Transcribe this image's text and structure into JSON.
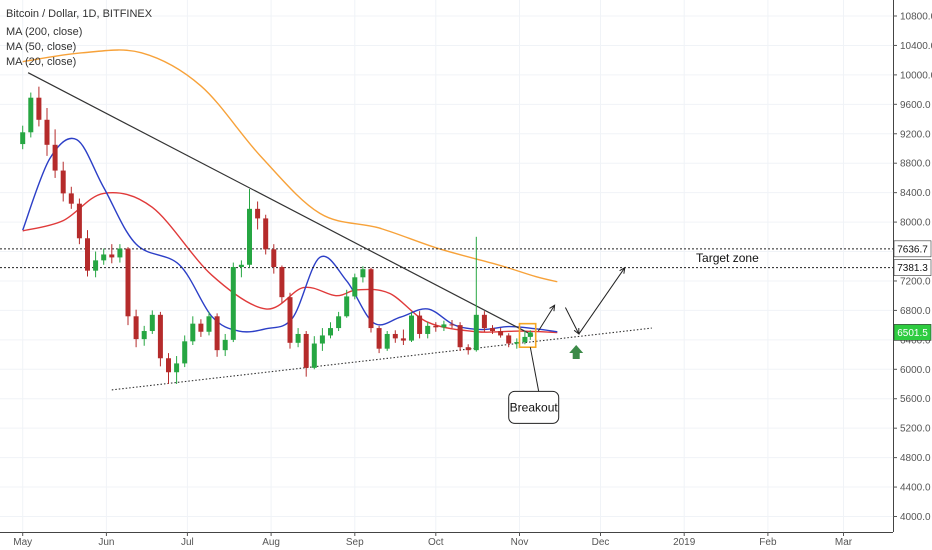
{
  "chart_data": {
    "type": "candlestick",
    "title": "Bitcoin / Dollar, 1D, BITFINEX",
    "indicators": [
      {
        "name": "MA (200, close)",
        "color": "#f7a23a"
      },
      {
        "name": "MA (50, close)",
        "color": "#e03a3a"
      },
      {
        "name": "MA (20, close)",
        "color": "#2c3fc7"
      }
    ],
    "y_ticks": [
      10800,
      10400,
      10000,
      9600,
      9200,
      8800,
      8400,
      8000,
      7600,
      7200,
      6800,
      6400,
      6000,
      5600,
      5200,
      4800,
      4400,
      4000
    ],
    "y_tick_labels": [
      "10800.0",
      "10400.0",
      "10000.0",
      "9600.0",
      "9200.0",
      "8800.0",
      "8400.0",
      "8000.0",
      "7600.0",
      "7200.0",
      "6800.0",
      "6400.0",
      "6000.0",
      "5600.0",
      "5200.0",
      "4800.0",
      "4400.0",
      "4000.0"
    ],
    "ylim": [
      3880,
      11040
    ],
    "x_ticks": [
      {
        "date": "2018-05-01",
        "label": "May"
      },
      {
        "date": "2018-06-01",
        "label": "Jun"
      },
      {
        "date": "2018-07-01",
        "label": "Jul"
      },
      {
        "date": "2018-08-01",
        "label": "Aug"
      },
      {
        "date": "2018-09-01",
        "label": "Sep"
      },
      {
        "date": "2018-10-01",
        "label": "Oct"
      },
      {
        "date": "2018-11-01",
        "label": "Nov"
      },
      {
        "date": "2018-12-01",
        "label": "Dec"
      },
      {
        "date": "2019-01-01",
        "label": "2019"
      },
      {
        "date": "2019-02-01",
        "label": "Feb"
      },
      {
        "date": "2019-03-01",
        "label": "Mar"
      }
    ],
    "xlim": [
      "2018-04-30",
      "2019-03-19"
    ],
    "candles": [
      [
        "2018-05-01",
        9060,
        9310,
        8990,
        9220
      ],
      [
        "2018-05-04",
        9220,
        9760,
        9150,
        9690
      ],
      [
        "2018-05-07",
        9690,
        9840,
        9300,
        9390
      ],
      [
        "2018-05-10",
        9390,
        9550,
        8900,
        9050
      ],
      [
        "2018-05-13",
        9050,
        9260,
        8600,
        8700
      ],
      [
        "2018-05-16",
        8700,
        8820,
        8280,
        8390
      ],
      [
        "2018-05-19",
        8390,
        8480,
        8180,
        8250
      ],
      [
        "2018-05-22",
        8250,
        8320,
        7700,
        7780
      ],
      [
        "2018-05-25",
        7780,
        7890,
        7260,
        7340
      ],
      [
        "2018-05-28",
        7340,
        7600,
        7250,
        7480
      ],
      [
        "2018-05-31",
        7480,
        7640,
        7420,
        7560
      ],
      [
        "2018-06-03",
        7560,
        7700,
        7440,
        7520
      ],
      [
        "2018-06-06",
        7520,
        7700,
        7450,
        7640
      ],
      [
        "2018-06-09",
        7640,
        7660,
        6600,
        6720
      ],
      [
        "2018-06-12",
        6720,
        6810,
        6300,
        6410
      ],
      [
        "2018-06-15",
        6410,
        6590,
        6320,
        6520
      ],
      [
        "2018-06-18",
        6520,
        6800,
        6480,
        6740
      ],
      [
        "2018-06-21",
        6740,
        6780,
        6040,
        6150
      ],
      [
        "2018-06-24",
        6150,
        6220,
        5800,
        5960
      ],
      [
        "2018-06-27",
        5960,
        6180,
        5800,
        6080
      ],
      [
        "2018-06-30",
        6080,
        6460,
        6030,
        6380
      ],
      [
        "2018-07-03",
        6380,
        6720,
        6330,
        6620
      ],
      [
        "2018-07-06",
        6620,
        6680,
        6440,
        6510
      ],
      [
        "2018-07-09",
        6510,
        6780,
        6460,
        6720
      ],
      [
        "2018-07-12",
        6720,
        6760,
        6170,
        6260
      ],
      [
        "2018-07-15",
        6260,
        6480,
        6180,
        6400
      ],
      [
        "2018-07-18",
        6400,
        7450,
        6370,
        7390
      ],
      [
        "2018-07-21",
        7390,
        7480,
        7250,
        7420
      ],
      [
        "2018-07-24",
        7420,
        8450,
        7380,
        8180
      ],
      [
        "2018-07-27",
        8180,
        8280,
        7900,
        8050
      ],
      [
        "2018-07-30",
        8050,
        8100,
        7560,
        7630
      ],
      [
        "2018-08-02",
        7630,
        7700,
        7300,
        7390
      ],
      [
        "2018-08-05",
        7390,
        7410,
        6900,
        6980
      ],
      [
        "2018-08-08",
        6980,
        7040,
        6280,
        6360
      ],
      [
        "2018-08-11",
        6360,
        6560,
        6300,
        6480
      ],
      [
        "2018-08-14",
        6480,
        6520,
        5900,
        6020
      ],
      [
        "2018-08-17",
        6020,
        6450,
        6000,
        6350
      ],
      [
        "2018-08-20",
        6350,
        6560,
        6250,
        6460
      ],
      [
        "2018-08-23",
        6460,
        6640,
        6420,
        6560
      ],
      [
        "2018-08-26",
        6560,
        6780,
        6520,
        6720
      ],
      [
        "2018-08-29",
        6720,
        7080,
        6700,
        6990
      ],
      [
        "2018-09-01",
        6990,
        7300,
        6950,
        7250
      ],
      [
        "2018-09-04",
        7250,
        7400,
        7180,
        7360
      ],
      [
        "2018-09-07",
        7360,
        7380,
        6500,
        6560
      ],
      [
        "2018-09-10",
        6560,
        6590,
        6220,
        6280
      ],
      [
        "2018-09-13",
        6280,
        6520,
        6250,
        6480
      ],
      [
        "2018-09-16",
        6480,
        6530,
        6360,
        6420
      ],
      [
        "2018-09-19",
        6420,
        6540,
        6330,
        6390
      ],
      [
        "2018-09-22",
        6390,
        6780,
        6370,
        6730
      ],
      [
        "2018-09-25",
        6730,
        6790,
        6420,
        6480
      ],
      [
        "2018-09-28",
        6480,
        6640,
        6420,
        6590
      ],
      [
        "2018-10-01",
        6590,
        6640,
        6510,
        6570
      ],
      [
        "2018-10-04",
        6570,
        6660,
        6520,
        6610
      ],
      [
        "2018-10-07",
        6610,
        6670,
        6560,
        6600
      ],
      [
        "2018-10-10",
        6600,
        6640,
        6250,
        6300
      ],
      [
        "2018-10-13",
        6300,
        6340,
        6200,
        6260
      ],
      [
        "2018-10-16",
        6260,
        7800,
        6240,
        6740
      ],
      [
        "2018-10-19",
        6740,
        6790,
        6510,
        6560
      ],
      [
        "2018-10-22",
        6560,
        6600,
        6480,
        6520
      ],
      [
        "2018-10-25",
        6520,
        6560,
        6430,
        6460
      ],
      [
        "2018-10-28",
        6460,
        6490,
        6300,
        6350
      ],
      [
        "2018-10-31",
        6350,
        6420,
        6280,
        6370
      ],
      [
        "2018-11-03",
        6370,
        6520,
        6340,
        6440
      ],
      [
        "2018-11-05",
        6440,
        6530,
        6400,
        6501.5
      ]
    ],
    "ma200": [
      [
        0,
        10180
      ],
      [
        22,
        10300
      ],
      [
        44,
        10300
      ],
      [
        66,
        9850
      ],
      [
        88,
        8900
      ],
      [
        110,
        8120
      ],
      [
        132,
        7920
      ],
      [
        154,
        7640
      ],
      [
        176,
        7420
      ],
      [
        190,
        7260
      ],
      [
        198,
        7190
      ]
    ],
    "ma50": [
      [
        0,
        7880
      ],
      [
        15,
        8020
      ],
      [
        30,
        8390
      ],
      [
        48,
        8200
      ],
      [
        70,
        7280
      ],
      [
        90,
        6820
      ],
      [
        104,
        7110
      ],
      [
        116,
        7000
      ],
      [
        124,
        7080
      ],
      [
        136,
        7030
      ],
      [
        150,
        6640
      ],
      [
        168,
        6510
      ],
      [
        184,
        6520
      ],
      [
        198,
        6500
      ]
    ],
    "ma20": [
      [
        0,
        7890
      ],
      [
        10,
        8860
      ],
      [
        20,
        9120
      ],
      [
        30,
        8470
      ],
      [
        42,
        7700
      ],
      [
        58,
        7420
      ],
      [
        70,
        6720
      ],
      [
        80,
        6520
      ],
      [
        90,
        6550
      ],
      [
        100,
        6700
      ],
      [
        110,
        7520
      ],
      [
        120,
        7200
      ],
      [
        130,
        6630
      ],
      [
        140,
        6710
      ],
      [
        150,
        6820
      ],
      [
        160,
        6600
      ],
      [
        170,
        6540
      ],
      [
        180,
        6580
      ],
      [
        190,
        6550
      ],
      [
        198,
        6510
      ]
    ],
    "last_price": "6501.5",
    "annotations": {
      "target_zone_label": "Target zone",
      "target_high": "7636.7",
      "target_low": "7381.3",
      "breakout_label": "Breakout"
    }
  },
  "colors": {
    "up": "#26a642",
    "down": "#b52b2b",
    "last_price_bg": "#2ecc40",
    "arrow": "#3c8a48",
    "breakout_box": "#f5a623"
  }
}
